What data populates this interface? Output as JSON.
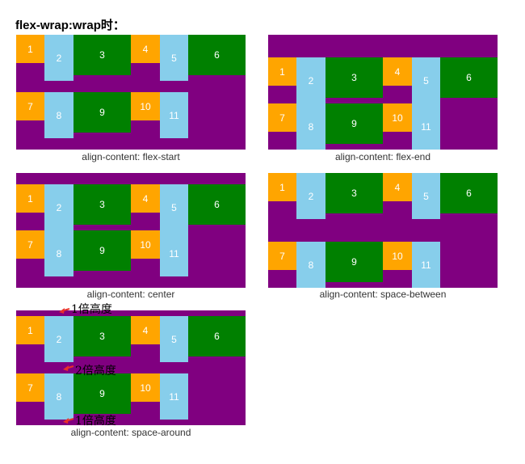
{
  "title": "flex-wrap:wrap时：",
  "colors": {
    "container": "#800080",
    "orange": "#FFA500",
    "blue": "#87CEEB",
    "green": "#008000",
    "arrow": "#E8302A"
  },
  "panels": [
    {
      "id": "flex-start",
      "caption": "align-content: flex-start"
    },
    {
      "id": "flex-end",
      "caption": "align-content: flex-end"
    },
    {
      "id": "center",
      "caption": "align-content: center"
    },
    {
      "id": "space-between",
      "caption": "align-content: space-between"
    },
    {
      "id": "space-around",
      "caption": "align-content: space-around"
    }
  ],
  "items": [
    {
      "label": "1",
      "color": "orange"
    },
    {
      "label": "2",
      "color": "blue"
    },
    {
      "label": "3",
      "color": "green"
    },
    {
      "label": "4",
      "color": "orange"
    },
    {
      "label": "5",
      "color": "blue"
    },
    {
      "label": "6",
      "color": "green"
    },
    {
      "label": "7",
      "color": "orange"
    },
    {
      "label": "8",
      "color": "blue"
    },
    {
      "label": "9",
      "color": "green"
    },
    {
      "label": "10",
      "color": "orange"
    },
    {
      "label": "11",
      "color": "blue"
    }
  ],
  "annotations": [
    {
      "text": "1倍高度"
    },
    {
      "text": "2倍高度"
    },
    {
      "text": "1倍高度"
    }
  ]
}
